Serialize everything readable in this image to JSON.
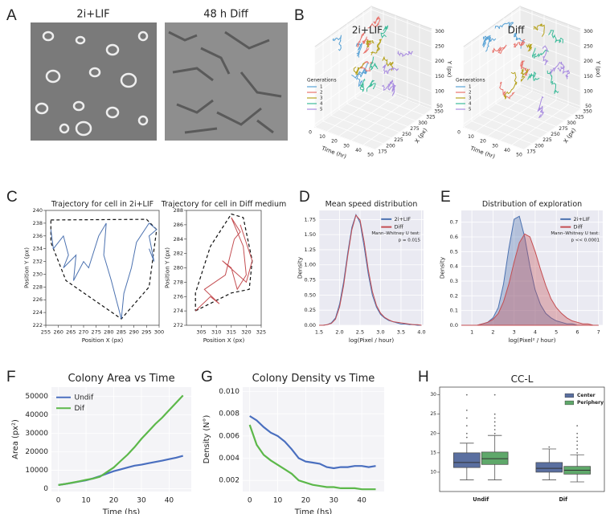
{
  "panel_labels": [
    "A",
    "B",
    "C",
    "D",
    "E",
    "F",
    "G",
    "H"
  ],
  "images": [
    {
      "label": "2i+LIF"
    },
    {
      "label": "48 h Diff"
    }
  ],
  "chart_data": [
    {
      "type": "trajectory3d",
      "title": "2i+LIF",
      "legend_title": "Generations",
      "series": [
        {
          "name": "1",
          "color": "#5aa3d6"
        },
        {
          "name": "2",
          "color": "#e8736c"
        },
        {
          "name": "3",
          "color": "#b5a21e"
        },
        {
          "name": "4",
          "color": "#3dbb9a"
        },
        {
          "name": "5",
          "color": "#a88be0"
        }
      ],
      "t_label": "Time (hr)",
      "x_label": "X (px)",
      "y_label": "Y (px)",
      "tlim": [
        0,
        50
      ],
      "tticks": [
        0,
        10,
        20,
        30,
        40,
        50
      ],
      "xlim": [
        175,
        350
      ],
      "xticks": [
        175,
        200,
        225,
        250,
        275,
        300,
        325,
        350
      ],
      "ylim": [
        40,
        310
      ],
      "yticks": [
        50,
        100,
        150,
        200,
        250,
        300
      ]
    },
    {
      "type": "trajectory3d",
      "title": "Diff",
      "legend_title": "Generations",
      "series": [
        {
          "name": "1",
          "color": "#5aa3d6"
        },
        {
          "name": "2",
          "color": "#e8736c"
        },
        {
          "name": "3",
          "color": "#b5a21e"
        },
        {
          "name": "4",
          "color": "#3dbb9a"
        },
        {
          "name": "5",
          "color": "#a88be0"
        }
      ],
      "t_label": "Time (hr)",
      "x_label": "X (px)",
      "y_label": "Y (px)",
      "tlim": [
        0,
        50
      ],
      "tticks": [
        0,
        10,
        20,
        30,
        40,
        50
      ],
      "xlim": [
        175,
        350
      ],
      "xticks": [
        175,
        200,
        225,
        250,
        275,
        300,
        325,
        350
      ],
      "ylim": [
        40,
        310
      ],
      "yticks": [
        50,
        100,
        150,
        200,
        250,
        300
      ]
    },
    {
      "type": "line",
      "title": "Trajectory for cell in 2i+LIF",
      "x_label": "Position X (px)",
      "y_label": "Position Y (px)",
      "color": "#4c72b0",
      "x": [
        257,
        258,
        262,
        264,
        262,
        267,
        266,
        270,
        272,
        276,
        279,
        278,
        281,
        283,
        285,
        286,
        289,
        291,
        296,
        299,
        296,
        298,
        296
      ],
      "values": [
        237,
        234,
        236,
        233,
        231,
        233,
        229,
        232,
        231,
        236,
        238,
        233,
        229,
        226,
        223,
        227,
        231,
        235,
        238,
        237,
        236,
        232,
        234
      ],
      "hull_x": [
        257,
        295,
        299,
        296,
        285,
        263,
        257,
        257
      ],
      "hull_y": [
        238.5,
        238.6,
        237,
        228,
        223,
        229,
        235,
        238.5
      ],
      "xlim": [
        255,
        300
      ],
      "xticks": [
        255,
        260,
        265,
        270,
        275,
        280,
        285,
        290,
        295,
        300
      ],
      "ylim": [
        222,
        240
      ],
      "yticks": [
        222,
        224,
        226,
        228,
        230,
        232,
        234,
        236,
        238,
        240
      ],
      "grid": false
    },
    {
      "type": "line",
      "title": "Trajectory for cell in Diff medium",
      "x_label": "Position X (px)",
      "y_label": "Position Y (px)",
      "color": "#c44e52",
      "x": [
        303,
        308,
        311,
        306,
        313,
        316,
        318,
        315,
        319,
        320,
        317,
        315,
        312,
        320,
        322,
        318
      ],
      "values": [
        274,
        276,
        275,
        277,
        279,
        284,
        285,
        287,
        283,
        279,
        277,
        280,
        281,
        278,
        281,
        286
      ],
      "hull_x": [
        303,
        315,
        321,
        322,
        319,
        315,
        308,
        303,
        303
      ],
      "hull_y": [
        274,
        276.5,
        277,
        281,
        287,
        287.5,
        283,
        276.5,
        274
      ],
      "xlim": [
        300,
        325
      ],
      "xticks": [
        305,
        310,
        315,
        320,
        325
      ],
      "ylim": [
        272,
        288
      ],
      "yticks": [
        272,
        274,
        276,
        278,
        280,
        282,
        284,
        286,
        288
      ],
      "grid": false
    },
    {
      "type": "line",
      "title": "Mean speed distribution",
      "x_label": "log(Pixel / hour)",
      "y_label": "Density",
      "x": [
        1.5,
        1.6,
        1.7,
        1.8,
        1.9,
        2.0,
        2.1,
        2.2,
        2.3,
        2.4,
        2.5,
        2.6,
        2.7,
        2.8,
        2.9,
        3.0,
        3.1,
        3.2,
        3.3,
        3.4,
        3.5,
        3.6,
        3.7,
        3.8,
        3.9,
        4.0
      ],
      "series": [
        {
          "name": "2i+LIF",
          "color": "#4c72b0",
          "values": [
            0,
            0,
            0.01,
            0.04,
            0.12,
            0.35,
            0.72,
            1.2,
            1.62,
            1.83,
            1.7,
            1.3,
            0.85,
            0.5,
            0.3,
            0.18,
            0.12,
            0.08,
            0.06,
            0.04,
            0.02,
            0.02,
            0.01,
            0.01,
            0,
            0
          ]
        },
        {
          "name": "Diff",
          "color": "#c44e52",
          "values": [
            0,
            0,
            0.01,
            0.03,
            0.1,
            0.3,
            0.66,
            1.15,
            1.58,
            1.82,
            1.74,
            1.38,
            0.92,
            0.56,
            0.33,
            0.2,
            0.13,
            0.09,
            0.06,
            0.05,
            0.04,
            0.03,
            0.02,
            0.01,
            0.01,
            0
          ]
        }
      ],
      "annotation": [
        "Mann–Whitney U test:",
        "p = 0.015"
      ],
      "legend": "upper right",
      "background": "#eaeaf2",
      "grid": true,
      "xlim": [
        1.5,
        4.05
      ],
      "xticks": [
        1.5,
        {
          "value": 2,
          "label": "2.0"
        },
        2.5,
        {
          "value": 3,
          "label": "3.0"
        },
        3.5,
        {
          "value": 4,
          "label": "4.0"
        }
      ],
      "ylim": [
        0,
        1.9
      ],
      "yticks": [
        {
          "value": 0,
          "label": "0.00"
        },
        0.25,
        {
          "value": 0.5,
          "label": "0.50"
        },
        0.75,
        {
          "value": 1,
          "label": "1.00"
        },
        1.25,
        {
          "value": 1.5,
          "label": "1.50"
        },
        1.75
      ]
    },
    {
      "type": "area",
      "title": "Distribution of exploration",
      "x_label": "log(Pixel² / hour)",
      "y_label": "Density",
      "x": [
        0.5,
        0.75,
        1,
        1.25,
        1.5,
        1.75,
        2,
        2.25,
        2.5,
        2.75,
        3,
        3.25,
        3.5,
        3.75,
        4,
        4.25,
        4.5,
        4.75,
        5,
        5.25,
        5.5,
        5.75,
        6,
        6.25,
        6.5,
        6.75,
        7
      ],
      "series": [
        {
          "name": "2i+LIF",
          "color": "#4c72b0",
          "values": [
            0,
            0,
            0,
            0,
            0.01,
            0.02,
            0.05,
            0.12,
            0.28,
            0.52,
            0.72,
            0.74,
            0.6,
            0.4,
            0.24,
            0.14,
            0.08,
            0.05,
            0.03,
            0.02,
            0.01,
            0.01,
            0,
            0,
            0,
            0,
            0
          ]
        },
        {
          "name": "Diff",
          "color": "#c44e52",
          "values": [
            0,
            0,
            0,
            0,
            0.01,
            0.02,
            0.04,
            0.08,
            0.16,
            0.28,
            0.43,
            0.56,
            0.62,
            0.6,
            0.5,
            0.38,
            0.27,
            0.18,
            0.12,
            0.08,
            0.05,
            0.03,
            0.02,
            0.01,
            0.01,
            0,
            0
          ]
        }
      ],
      "annotation": [
        "Mann–Whitney U test:",
        "p << 0.0001"
      ],
      "legend": "upper right",
      "background": "#eaeaf2",
      "grid": true,
      "xlim": [
        0.5,
        7.2
      ],
      "xticks": [
        1,
        2,
        3,
        4,
        5,
        6,
        7
      ],
      "ylim": [
        0,
        0.78
      ],
      "yticks": [
        {
          "value": 0,
          "label": "0.0"
        },
        0.1,
        0.2,
        0.3,
        0.4,
        0.5,
        0.6,
        0.7
      ]
    },
    {
      "type": "line",
      "title": "Colony Area vs Time",
      "x_label": "Time (hs)",
      "y_label": "Area (px²)",
      "x": [
        0,
        2.5,
        5,
        7.5,
        10,
        12.5,
        15,
        17.5,
        20,
        22.5,
        25,
        27.5,
        30,
        32.5,
        35,
        37.5,
        40,
        42.5,
        45
      ],
      "series": [
        {
          "name": "Undif",
          "color": "#4a6fbf",
          "values": [
            2000,
            2600,
            3200,
            3900,
            4600,
            5600,
            6800,
            8200,
            9500,
            10500,
            11500,
            12500,
            13000,
            13800,
            14500,
            15200,
            16000,
            16800,
            17800
          ]
        },
        {
          "name": "Dif",
          "color": "#5cb84a",
          "values": [
            2000,
            2600,
            3300,
            4000,
            4800,
            5500,
            6500,
            9000,
            11500,
            15000,
            18500,
            22500,
            27000,
            31000,
            35000,
            38500,
            42500,
            46500,
            50500
          ]
        }
      ],
      "legend": "upper left",
      "background": "#f4f4f7",
      "grid": true,
      "xlim": [
        -2.5,
        48
      ],
      "xticks": [
        0,
        10,
        20,
        30,
        40
      ],
      "ylim": [
        -1500,
        55000
      ],
      "yticks": [
        0,
        10000,
        20000,
        30000,
        40000,
        50000
      ]
    },
    {
      "type": "line",
      "title": "Colony Density vs Time",
      "x_label": "Time (hs)",
      "y_label": "Density (N°)",
      "x": [
        0,
        2.5,
        5,
        7.5,
        10,
        12.5,
        15,
        17.5,
        20,
        22.5,
        25,
        27.5,
        30,
        32.5,
        35,
        37.5,
        40,
        42.5,
        45
      ],
      "series": [
        {
          "name": "Undif",
          "color": "#4a6fbf",
          "values": [
            0.0078,
            0.0074,
            0.0068,
            0.0063,
            0.006,
            0.0055,
            0.0048,
            0.004,
            0.0037,
            0.0036,
            0.0035,
            0.0032,
            0.0031,
            0.0032,
            0.0032,
            0.0033,
            0.0033,
            0.0032,
            0.0033
          ]
        },
        {
          "name": "Dif",
          "color": "#5cb84a",
          "values": [
            0.007,
            0.0052,
            0.0043,
            0.0038,
            0.0034,
            0.003,
            0.0026,
            0.002,
            0.0018,
            0.0016,
            0.0015,
            0.0014,
            0.0014,
            0.0013,
            0.0013,
            0.0013,
            0.0012,
            0.0012,
            0.0012
          ]
        }
      ],
      "background": "#f4f4f7",
      "grid": true,
      "xlim": [
        -2.5,
        48
      ],
      "xticks": [
        0,
        10,
        20,
        30,
        40
      ],
      "ylim": [
        0.001,
        0.0104
      ],
      "yticks": [
        0.002,
        0.004,
        0.006,
        0.008,
        {
          "value": 0.01,
          "label": "0.010"
        }
      ]
    },
    {
      "type": "box",
      "title": "CC-L",
      "categories": [
        "Undif",
        "Dif"
      ],
      "legend": "upper right",
      "series": [
        {
          "name": "Center",
          "color": "#5a6fa0",
          "values": [
            {
              "min": 8,
              "q1": 11.2,
              "median": 12.5,
              "q3": 15,
              "max": 17.5,
              "outliers": [
                19,
                20,
                22,
                24,
                26,
                30
              ]
            },
            {
              "min": 8,
              "q1": 10,
              "median": 11,
              "q3": 12.5,
              "max": 16,
              "outliers": [
                16.5
              ]
            }
          ]
        },
        {
          "name": "Periphery",
          "color": "#5fa86a",
          "values": [
            {
              "min": 8,
              "q1": 12,
              "median": 13.5,
              "q3": 15.2,
              "max": 19.5,
              "outliers": [
                20,
                21,
                22,
                23,
                24,
                25,
                30
              ]
            },
            {
              "min": 7.5,
              "q1": 9.5,
              "median": 10.5,
              "q3": 11.5,
              "max": 14.5,
              "outliers": [
                15,
                16,
                17,
                18,
                19,
                20,
                22
              ]
            }
          ]
        }
      ],
      "ylim": [
        5,
        32
      ],
      "yticks": [
        10,
        15,
        20,
        25,
        30
      ],
      "grid": false
    }
  ]
}
